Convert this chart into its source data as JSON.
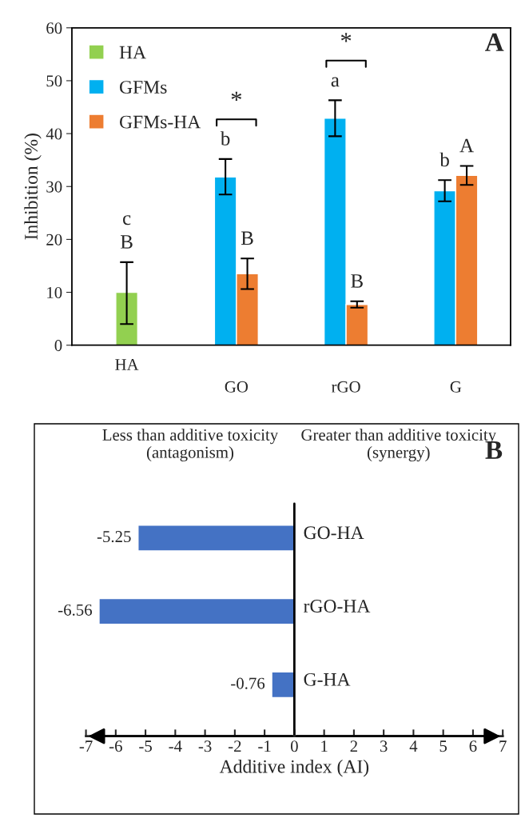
{
  "chart_data": [
    {
      "type": "bar",
      "title": "A",
      "ylabel": "Inhibition (%)",
      "categories": [
        "HA",
        "GO",
        "rGO",
        "G"
      ],
      "series": [
        {
          "name": "HA",
          "color": "#92d050",
          "values": [
            10,
            null,
            null,
            null
          ],
          "errors": [
            [
              4,
              15.7
            ],
            null,
            null,
            null
          ],
          "value_labels": [
            "c\nB",
            null,
            null,
            null
          ]
        },
        {
          "name": "GFMs",
          "color": "#00b0f0",
          "values": [
            null,
            31.8,
            42.9,
            29.2
          ],
          "errors": [
            null,
            [
              28.5,
              35.2
            ],
            [
              39.5,
              46.3
            ],
            [
              27.2,
              31.2
            ]
          ],
          "value_labels": [
            null,
            "b",
            "a",
            "b"
          ]
        },
        {
          "name": "GFMs-HA",
          "color": "#ed7d31",
          "values": [
            null,
            13.5,
            7.7,
            32.1
          ],
          "errors": [
            null,
            [
              10.6,
              16.4
            ],
            [
              7.1,
              8.3
            ],
            [
              30.3,
              33.9
            ]
          ],
          "value_labels": [
            null,
            "B",
            "B",
            "A"
          ]
        }
      ],
      "ylim": [
        0,
        60
      ],
      "yticks": [
        0,
        10,
        20,
        30,
        40,
        50,
        60
      ],
      "grid": false,
      "legend": "top left",
      "annotations": [
        "*",
        "*"
      ]
    },
    {
      "type": "bar",
      "orientation": "horizontal",
      "title": "B",
      "xlabel": "Additive index (AI)",
      "categories": [
        "GO-HA",
        "rGO-HA",
        "G-HA"
      ],
      "values": [
        -5.25,
        -6.56,
        -0.76
      ],
      "color": "#4472c4",
      "data_labels": true,
      "xlim": [
        -7,
        7
      ],
      "xticks": [
        -7,
        -6,
        -5,
        -4,
        -3,
        -2,
        -1,
        0,
        1,
        2,
        3,
        4,
        5,
        6,
        7
      ],
      "grid": false,
      "annotations": [
        "Less than additive toxicity\n(antagonism)",
        "Greater than additive toxicity\n(synergy)"
      ]
    }
  ]
}
